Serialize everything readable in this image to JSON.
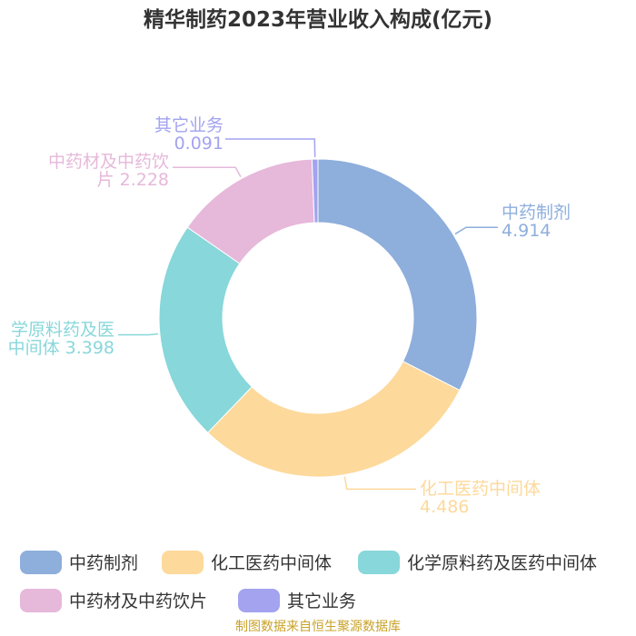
{
  "chart_data": {
    "type": "pie",
    "title": "精华制药2023年营业收入构成(亿元)",
    "categories": [
      "中药制剂",
      "化工医药中间体",
      "化学原料药及医药中间体",
      "中药材及中药饮片",
      "其它业务"
    ],
    "values": [
      4.914,
      4.486,
      3.398,
      2.228,
      0.091
    ],
    "value_labels": [
      "4.914",
      "4.486",
      "3.398",
      "2.228",
      "0.091"
    ],
    "slice_labels": [
      [
        "中药制剂",
        "4.914"
      ],
      [
        "化工医药中间体",
        "4.486"
      ],
      [
        "学原料药及医",
        "中间体 3.398"
      ],
      [
        "中药材及中药饮",
        "片 2.228"
      ],
      [
        "其它业务",
        "0.091"
      ]
    ],
    "colors": [
      "#8eaedc",
      "#fdd99b",
      "#88d7da",
      "#e6b8da",
      "#a3a3f0"
    ],
    "legend": {
      "placement": "bottom",
      "items": [
        "中药制剂",
        "化工医药中间体",
        "化学原料药及医药中间体",
        "中药材及中药饮片",
        "其它业务"
      ]
    }
  },
  "footer": {
    "source": "制图数据来自恒生聚源数据库"
  }
}
